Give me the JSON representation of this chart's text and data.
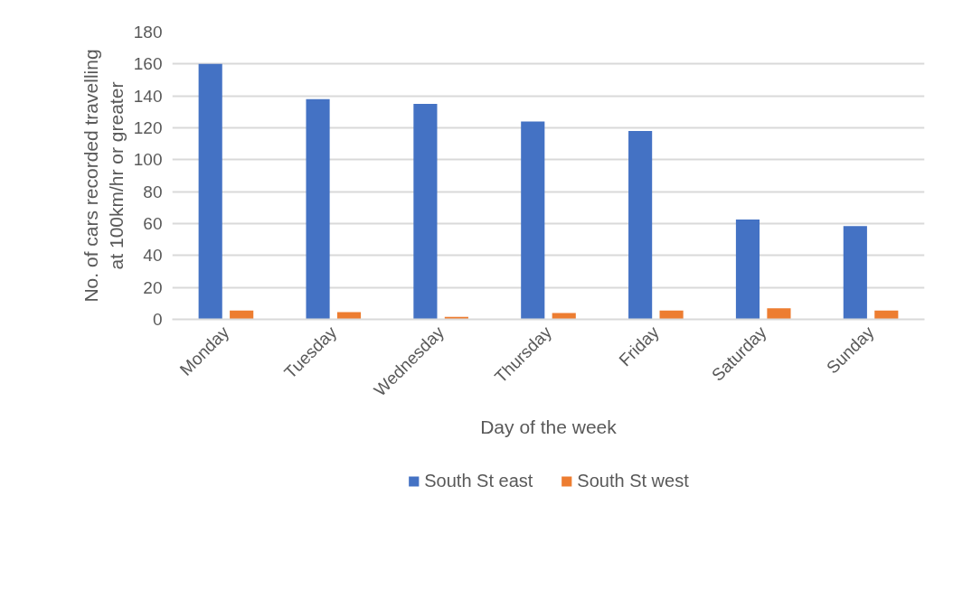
{
  "chart_data": {
    "type": "bar",
    "categories": [
      "Monday",
      "Tuesday",
      "Wednesday",
      "Thursday",
      "Friday",
      "Saturday",
      "Sunday"
    ],
    "series": [
      {
        "name": "South St east",
        "color": "#4472c4",
        "values": [
          160,
          138,
          135,
          124,
          118,
          62.5,
          58.5
        ]
      },
      {
        "name": "South St west",
        "color": "#ed7d31",
        "values": [
          5.5,
          4.5,
          1.5,
          4,
          5.5,
          7,
          5.5
        ]
      }
    ],
    "xlabel": "Day of the week",
    "ylabel": "No. of cars recorded travelling at 100km/hr or greater",
    "ylim": [
      0,
      180
    ],
    "yticks": [
      0,
      20,
      40,
      60,
      80,
      100,
      120,
      140,
      160,
      180
    ],
    "grid": "y",
    "legend": "bottom"
  }
}
